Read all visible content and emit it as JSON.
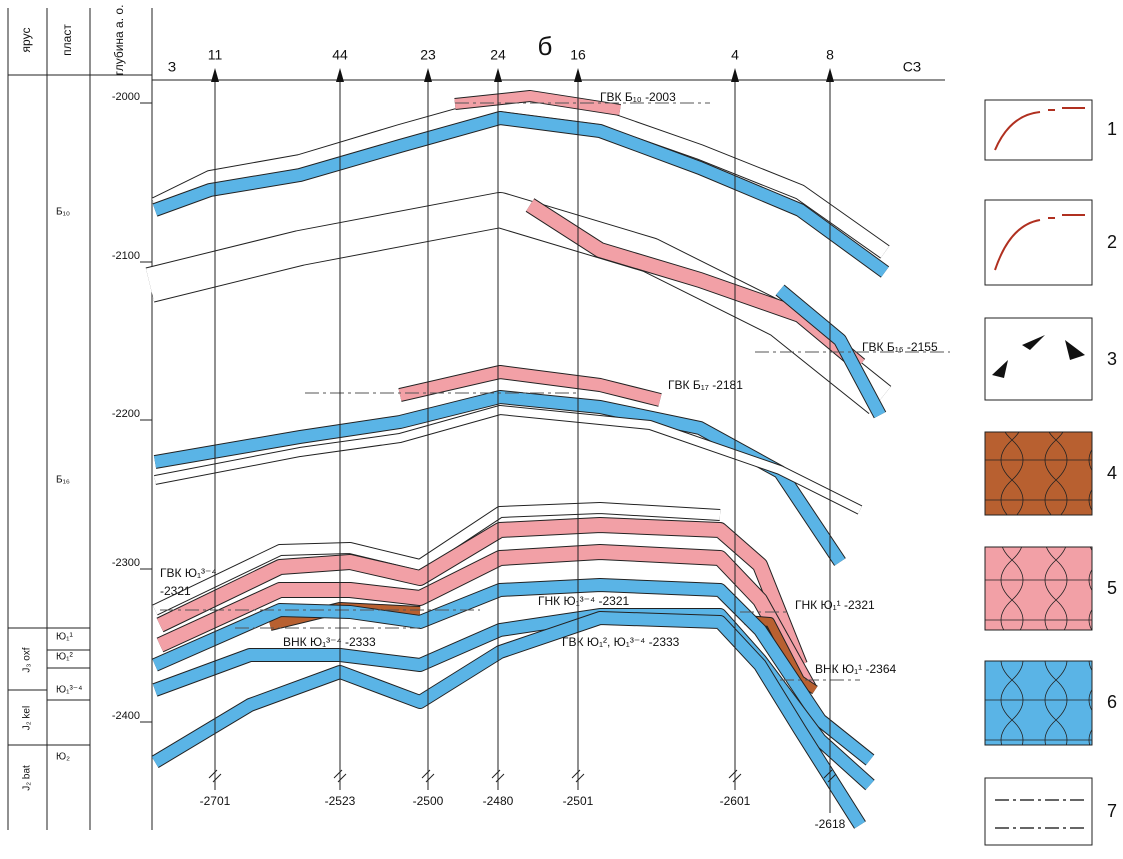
{
  "header": {
    "columns": [
      "ярус",
      "пласт",
      "глубина а. о."
    ],
    "title": "б",
    "left_direction": "З",
    "right_direction": "СЗ"
  },
  "depth_ticks": [
    "-2000",
    "-2100",
    "-2200",
    "-2300",
    "-2400"
  ],
  "wells": [
    {
      "name": "11",
      "bottom": "-2701"
    },
    {
      "name": "44",
      "bottom": "-2523"
    },
    {
      "name": "23",
      "bottom": "-2500"
    },
    {
      "name": "24",
      "bottom": "-2480"
    },
    {
      "name": "16",
      "bottom": "-2501"
    },
    {
      "name": "4",
      "bottom": "-2601"
    },
    {
      "name": "8",
      "bottom": "-2618"
    }
  ],
  "layers": [
    "Б₁₀",
    "Б₁₆",
    "Ю₁¹",
    "Ю₁²",
    "Ю₁³⁻⁴",
    "Ю₂"
  ],
  "stages": [
    "J₃ oxf",
    "J₂ kel",
    "J₂ bat"
  ],
  "annotations": [
    "ГВК Б₁₀ -2003",
    "ГВК Б₁₆ -2155",
    "ГВК Б₁₇ -2181",
    "ГВК Ю₁³⁻⁴",
    "-2321",
    "ГНК Ю₁³⁻⁴ -2321",
    "ГНК Ю₁¹ -2321",
    "ВНК Ю₁³⁻⁴ -2333",
    "ГВК Ю₁², Ю₁³⁻⁴ -2333",
    "ВНК Ю₁¹ -2364"
  ],
  "legend": [
    "1",
    "2",
    "3",
    "4",
    "5",
    "6",
    "7"
  ]
}
